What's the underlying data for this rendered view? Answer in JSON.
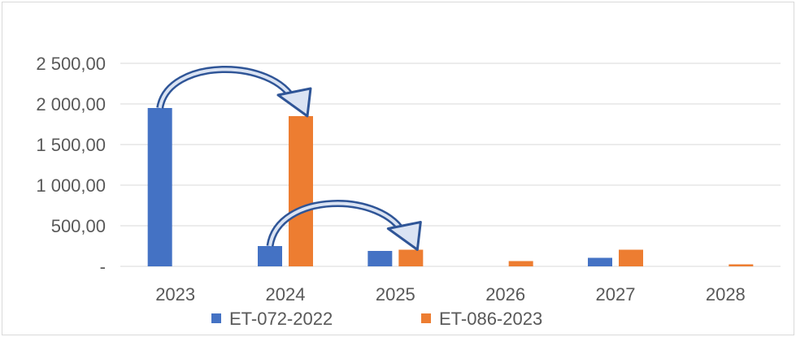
{
  "chart_data": {
    "type": "bar",
    "categories": [
      "2023",
      "2024",
      "2025",
      "2026",
      "2027",
      "2028"
    ],
    "series": [
      {
        "name": "ET-072-2022",
        "color": "#4472c4",
        "values": [
          1950,
          250,
          190,
          0,
          105,
          0
        ]
      },
      {
        "name": "ET-086-2023",
        "color": "#ed7d31",
        "values": [
          0,
          1850,
          205,
          65,
          205,
          25
        ]
      }
    ],
    "y_ticks": [
      {
        "value": 0,
        "label": "-"
      },
      {
        "value": 500,
        "label": "500,00"
      },
      {
        "value": 1000,
        "label": "1 000,00"
      },
      {
        "value": 1500,
        "label": "1 500,00"
      },
      {
        "value": 2000,
        "label": "2 000,00"
      },
      {
        "value": 2500,
        "label": "2 500,00"
      }
    ],
    "ylim": [
      0,
      2500
    ],
    "grid": true,
    "legend_position": "bottom",
    "annotations": [
      {
        "type": "curved-arrow",
        "from": "ET-072-2022 2023",
        "to": "ET-086-2023 2024"
      },
      {
        "type": "curved-arrow",
        "from": "ET-072-2022 2024",
        "to": "ET-086-2023 2025"
      }
    ],
    "arrow_color": "#2f5597"
  }
}
